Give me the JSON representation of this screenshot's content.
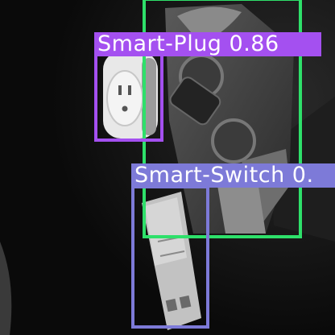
{
  "detections": [
    {
      "label": "Smart-Plug",
      "score": "0.86",
      "color": "#a450f0"
    },
    {
      "label": "Smart-Switch",
      "score": "0.",
      "color": "#7d7ad8"
    },
    {
      "label": "",
      "score": "",
      "color": "#2ee06a"
    }
  ]
}
